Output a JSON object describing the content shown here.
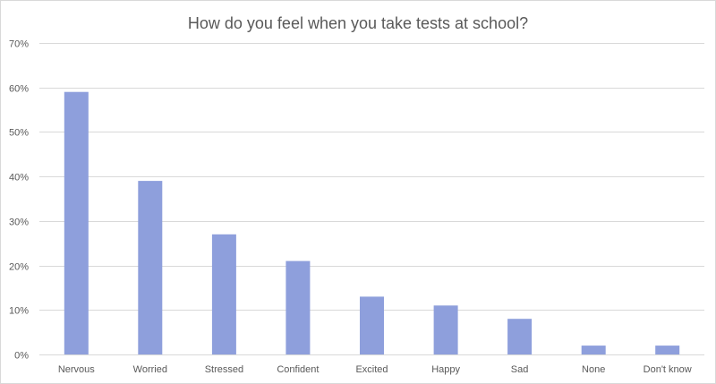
{
  "chart_data": {
    "type": "bar",
    "title": "How do you feel when you take tests at school?",
    "categories": [
      "Nervous",
      "Worried",
      "Stressed",
      "Confident",
      "Excited",
      "Happy",
      "Sad",
      "None",
      "Don't know"
    ],
    "values": [
      59,
      39,
      27,
      21,
      13,
      11,
      8,
      2,
      2
    ],
    "value_format": "percent",
    "ylim": [
      0,
      70
    ],
    "yticks": [
      0,
      10,
      20,
      30,
      40,
      50,
      60,
      70
    ],
    "ytick_labels": [
      "0%",
      "10%",
      "20%",
      "30%",
      "40%",
      "50%",
      "60%",
      "70%"
    ],
    "grid": true,
    "legend": "none",
    "bar_color": "#8e9fdc",
    "grid_color": "#d9d9d9",
    "text_color": "#595959"
  }
}
